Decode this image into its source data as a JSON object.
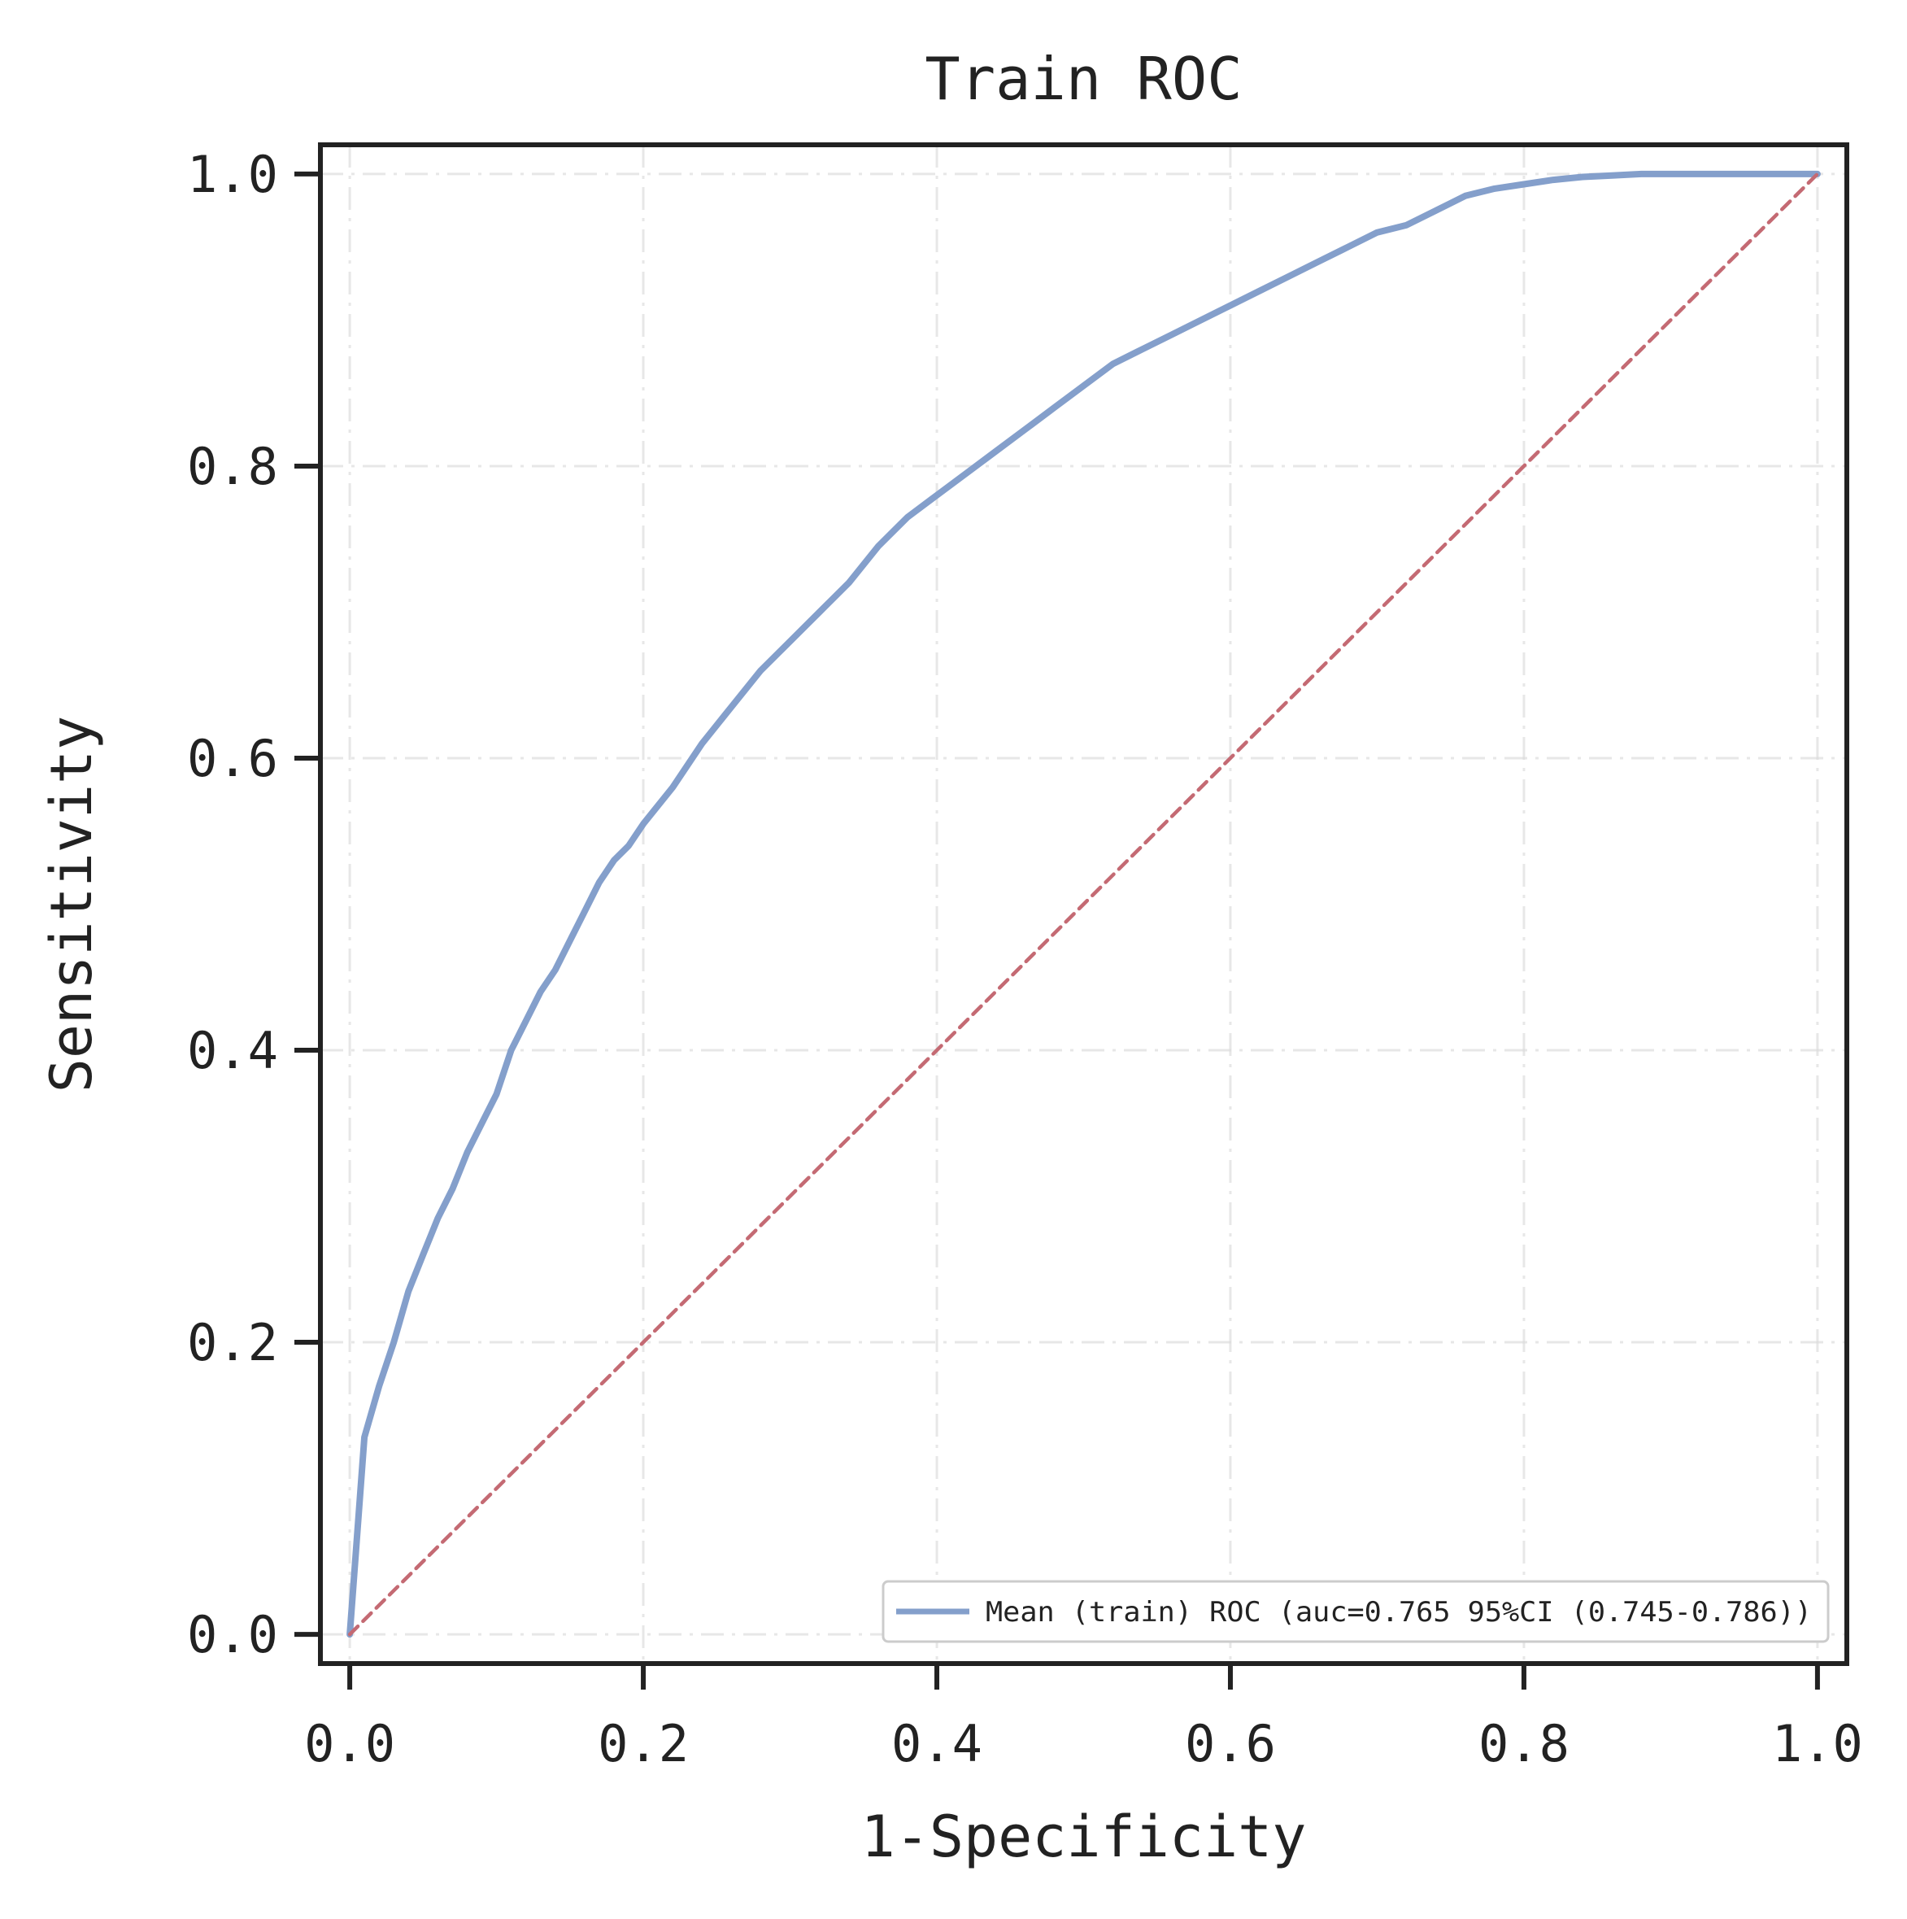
{
  "chart_data": {
    "type": "line",
    "title": "Train ROC",
    "xlabel": "1-Specificity",
    "ylabel": "Sensitivity",
    "xlim": [
      -0.02,
      1.02
    ],
    "ylim": [
      -0.02,
      1.02
    ],
    "xticks": [
      0.0,
      0.2,
      0.4,
      0.6,
      0.8,
      1.0
    ],
    "yticks": [
      0.0,
      0.2,
      0.4,
      0.6,
      0.8,
      1.0
    ],
    "xtick_labels": [
      "0.0",
      "0.2",
      "0.4",
      "0.6",
      "0.8",
      "1.0"
    ],
    "ytick_labels": [
      "0.0",
      "0.2",
      "0.4",
      "0.6",
      "0.8",
      "1.0"
    ],
    "grid": true,
    "legend_position": "lower-right",
    "series": [
      {
        "name": "Mean (train) ROC (auc=0.765 95%CI (0.745-0.786))",
        "color": "#849fcb",
        "style": "solid",
        "x": [
          0.0,
          0.01,
          0.02,
          0.03,
          0.04,
          0.05,
          0.06,
          0.07,
          0.08,
          0.09,
          0.1,
          0.11,
          0.12,
          0.13,
          0.14,
          0.15,
          0.16,
          0.17,
          0.18,
          0.19,
          0.2,
          0.22,
          0.24,
          0.26,
          0.28,
          0.3,
          0.32,
          0.34,
          0.36,
          0.38,
          0.4,
          0.42,
          0.44,
          0.46,
          0.48,
          0.5,
          0.52,
          0.54,
          0.56,
          0.58,
          0.6,
          0.62,
          0.64,
          0.66,
          0.68,
          0.7,
          0.72,
          0.74,
          0.76,
          0.78,
          0.8,
          0.82,
          0.84,
          0.86,
          0.88,
          0.9,
          0.95,
          1.0
        ],
        "y": [
          0.0,
          0.135,
          0.17,
          0.2,
          0.235,
          0.26,
          0.285,
          0.305,
          0.33,
          0.35,
          0.37,
          0.4,
          0.42,
          0.44,
          0.455,
          0.475,
          0.495,
          0.515,
          0.53,
          0.54,
          0.555,
          0.58,
          0.61,
          0.635,
          0.66,
          0.68,
          0.7,
          0.72,
          0.745,
          0.765,
          0.78,
          0.795,
          0.81,
          0.825,
          0.84,
          0.855,
          0.87,
          0.88,
          0.89,
          0.9,
          0.91,
          0.92,
          0.93,
          0.94,
          0.95,
          0.96,
          0.965,
          0.975,
          0.985,
          0.99,
          0.993,
          0.996,
          0.998,
          0.999,
          1.0,
          1.0,
          1.0,
          1.0
        ]
      },
      {
        "name": "",
        "color": "#c46a73",
        "style": "dashed",
        "x": [
          0.0,
          1.0
        ],
        "y": [
          0.0,
          1.0
        ]
      }
    ]
  }
}
